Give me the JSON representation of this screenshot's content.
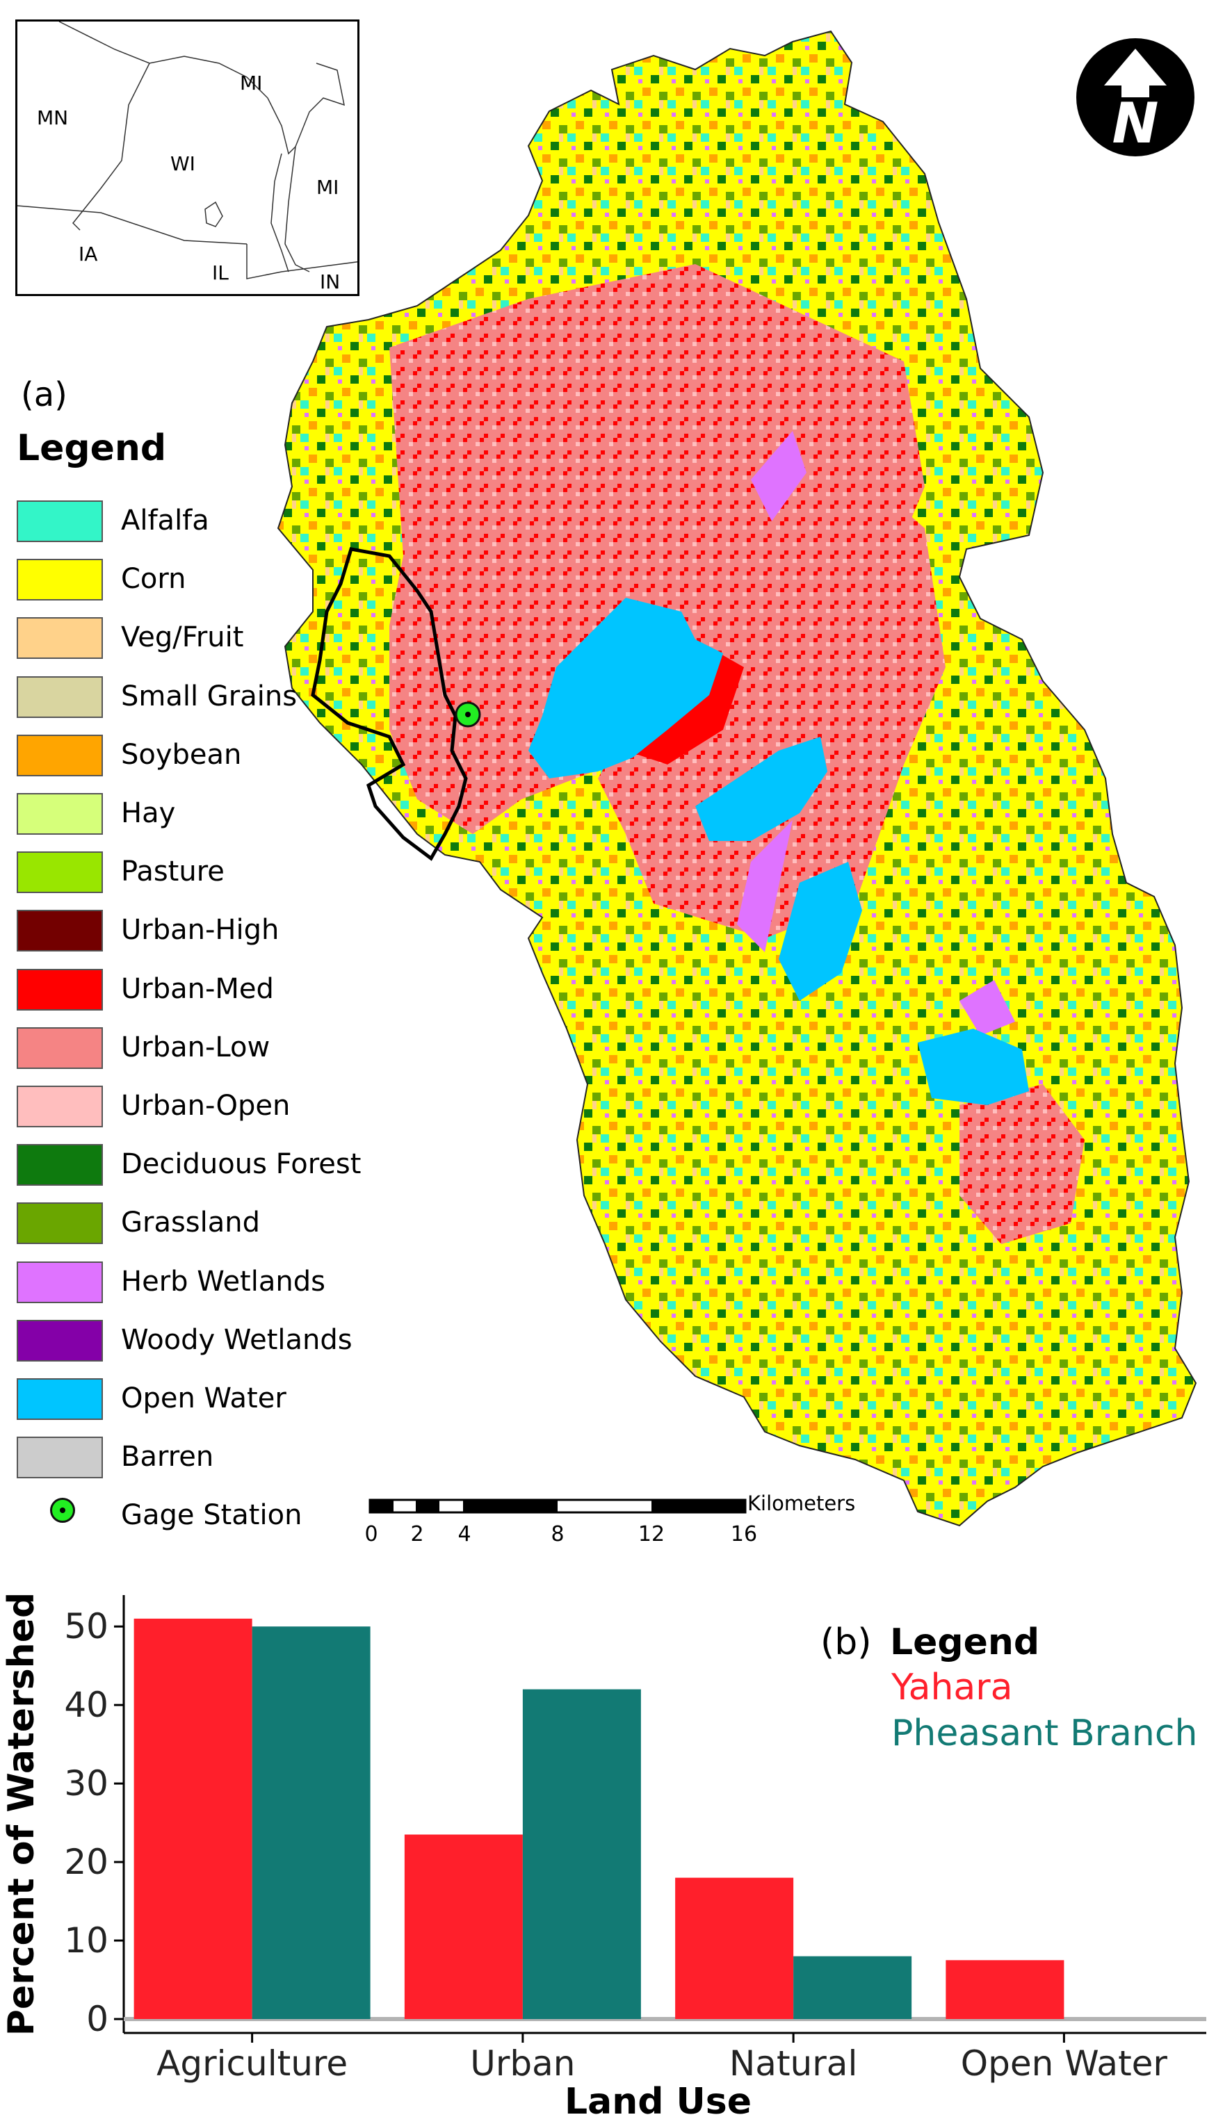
{
  "inset_map": {
    "labels": [
      "MN",
      "MI",
      "WI",
      "MI",
      "IA",
      "IL",
      "IN"
    ]
  },
  "north_arrow": {
    "letter": "N"
  },
  "map": {
    "panel_label": "(a)",
    "legend_title": "Legend",
    "legend": [
      {
        "label": "Alfalfa",
        "color": "#33f5c8"
      },
      {
        "label": "Corn",
        "color": "#ffff00"
      },
      {
        "label": "Veg/Fruit",
        "color": "#ffd28a"
      },
      {
        "label": "Small Grains",
        "color": "#d9d5a0"
      },
      {
        "label": "Soybean",
        "color": "#ffa500"
      },
      {
        "label": "Hay",
        "color": "#d6ff7a"
      },
      {
        "label": "Pasture",
        "color": "#99e600"
      },
      {
        "label": "Urban-High",
        "color": "#730000"
      },
      {
        "label": "Urban-Med",
        "color": "#ff0000"
      },
      {
        "label": "Urban-Low",
        "color": "#f58484"
      },
      {
        "label": "Urban-Open",
        "color": "#ffbebe"
      },
      {
        "label": "Deciduous Forest",
        "color": "#0e7a0e"
      },
      {
        "label": "Grassland",
        "color": "#6aa600"
      },
      {
        "label": "Herb Wetlands",
        "color": "#df73ff"
      },
      {
        "label": "Woody Wetlands",
        "color": "#8400a8"
      },
      {
        "label": "Open Water",
        "color": "#00c5ff"
      },
      {
        "label": "Barren",
        "color": "#cccccc"
      }
    ],
    "gage_label": "Gage Station",
    "scale": {
      "units": "Kilometers",
      "ticks": [
        "0",
        "2",
        "4",
        "8",
        "12",
        "16"
      ]
    }
  },
  "chart_data": {
    "type": "bar",
    "panel_label": "(b)",
    "legend_title": "Legend",
    "legend_placement": "top-right",
    "categories": [
      "Agriculture",
      "Urban",
      "Natural",
      "Open Water"
    ],
    "series": [
      {
        "name": "Yahara",
        "color": "#ff1f2b",
        "values": [
          51,
          23.5,
          18,
          7.5
        ]
      },
      {
        "name": "Pheasant Branch",
        "color": "#127a74",
        "values": [
          50,
          42,
          8,
          0
        ]
      }
    ],
    "xlabel": "Land Use",
    "ylabel": "Percent of Watershed",
    "yticks": [
      "0",
      "10",
      "20",
      "30",
      "40",
      "50"
    ],
    "ylim": [
      0,
      54
    ],
    "grid": false
  }
}
